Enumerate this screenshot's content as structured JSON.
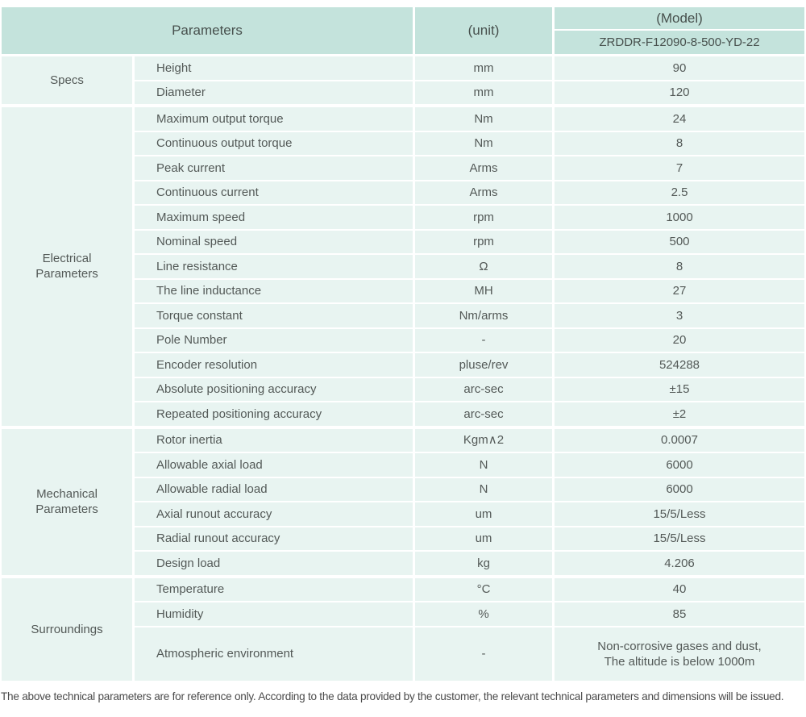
{
  "colors": {
    "header_bg": "#c4e3dc",
    "cell_bg": "#e8f4f1",
    "header_text": "#47504d",
    "body_text": "#535957"
  },
  "table": {
    "header": {
      "parameters_label": "Parameters",
      "unit_label": "(unit)",
      "model_label": "(Model)",
      "model_value": "ZRDDR-F12090-8-500-YD-22"
    },
    "sections": [
      {
        "category": "Specs",
        "rows": [
          {
            "param": "Height",
            "unit": "mm",
            "value": "90"
          },
          {
            "param": "Diameter",
            "unit": "mm",
            "value": "120"
          }
        ]
      },
      {
        "category": "Electrical\nParameters",
        "rows": [
          {
            "param": "Maximum output torque",
            "unit": "Nm",
            "value": "24"
          },
          {
            "param": "Continuous output torque",
            "unit": "Nm",
            "value": "8"
          },
          {
            "param": "Peak current",
            "unit": "Arms",
            "value": "7"
          },
          {
            "param": "Continuous current",
            "unit": "Arms",
            "value": "2.5"
          },
          {
            "param": "Maximum speed",
            "unit": "rpm",
            "value": "1000"
          },
          {
            "param": "Nominal speed",
            "unit": "rpm",
            "value": "500"
          },
          {
            "param": "Line resistance",
            "unit": "Ω",
            "value": "8"
          },
          {
            "param": "The line inductance",
            "unit": "MH",
            "value": "27"
          },
          {
            "param": "Torque constant",
            "unit": "Nm/arms",
            "value": "3"
          },
          {
            "param": "Pole Number",
            "unit": "-",
            "value": "20"
          },
          {
            "param": "Encoder resolution",
            "unit": "pluse/rev",
            "value": "524288"
          },
          {
            "param": "Absolute positioning accuracy",
            "unit": "arc-sec",
            "value": "±15"
          },
          {
            "param": "Repeated positioning accuracy",
            "unit": "arc-sec",
            "value": "±2"
          }
        ]
      },
      {
        "category": "Mechanical\nParameters",
        "rows": [
          {
            "param": "Rotor inertia",
            "unit": "Kgm∧2",
            "value": "0.0007"
          },
          {
            "param": "Allowable axial load",
            "unit": "N",
            "value": "6000"
          },
          {
            "param": "Allowable radial load",
            "unit": "N",
            "value": "6000"
          },
          {
            "param": "Axial runout accuracy",
            "unit": "um",
            "value": "15/5/Less"
          },
          {
            "param": "Radial runout accuracy",
            "unit": "um",
            "value": "15/5/Less"
          },
          {
            "param": "Design load",
            "unit": "kg",
            "value": "4.206"
          }
        ]
      },
      {
        "category": "Surroundings",
        "rows": [
          {
            "param": "Temperature",
            "unit": "°C",
            "value": "40"
          },
          {
            "param": "Humidity",
            "unit": "%",
            "value": "85"
          },
          {
            "param": "Atmospheric environment",
            "unit": "-",
            "value": "Non-corrosive gases and dust,\nThe altitude is below 1000m",
            "tall": true
          }
        ]
      }
    ]
  },
  "footer": {
    "note": "The above technical parameters are for reference only. According to the data provided by the customer, the relevant technical parameters and dimensions will be issued."
  }
}
